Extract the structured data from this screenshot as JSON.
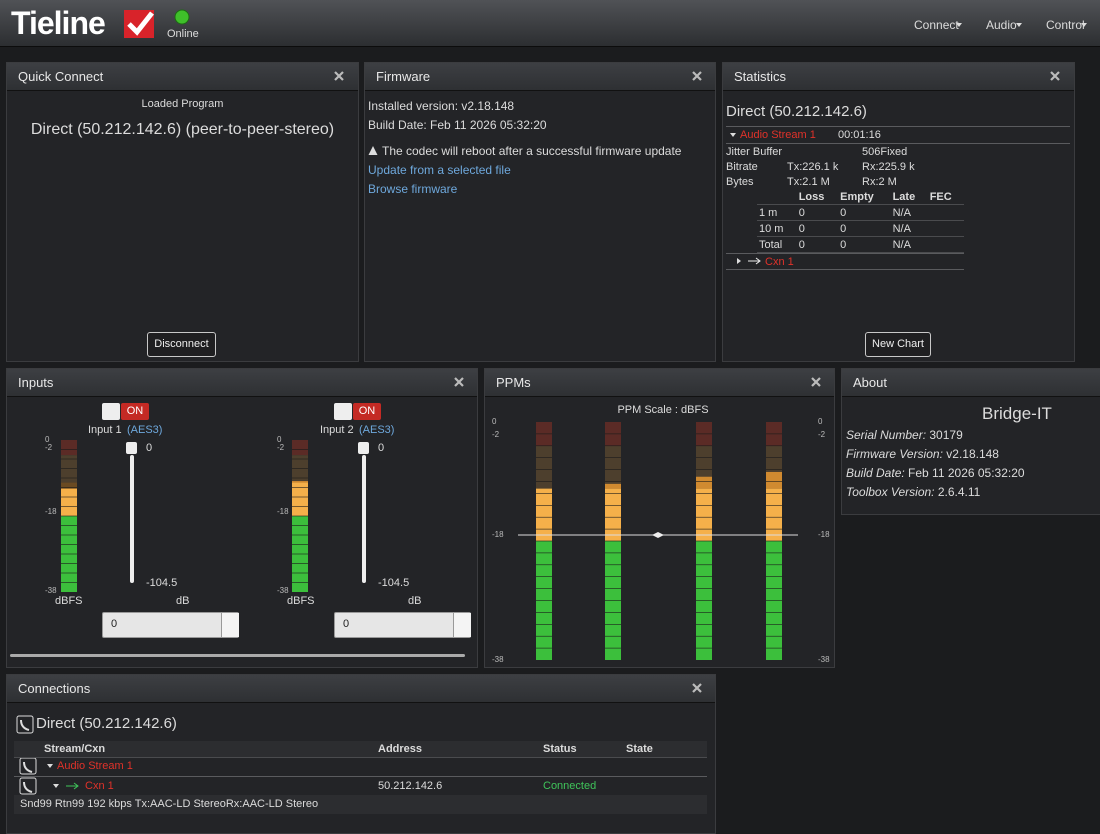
{
  "header": {
    "logo": "Tieline",
    "status": "Online",
    "menu": [
      "Connect",
      "Audio",
      "Control"
    ]
  },
  "quick_connect": {
    "title": "Quick Connect",
    "loaded_label": "Loaded Program",
    "program": "Direct (50.212.142.6) (peer-to-peer-stereo)",
    "button": "Disconnect"
  },
  "firmware": {
    "title": "Firmware",
    "installed": "Installed version: v2.18.148",
    "build": "Build Date: Feb 11 2026 05:32:20",
    "warning": "The codec will reboot after a successful firmware update",
    "links": [
      "Update from a selected file",
      "Browse firmware"
    ]
  },
  "statistics": {
    "title": "Statistics",
    "connection": "Direct (50.212.142.6)",
    "stream": "Audio Stream 1",
    "time": "00:01:16",
    "jitter": {
      "label": "Jitter Buffer",
      "value": "506Fixed"
    },
    "bitrate": {
      "label": "Bitrate",
      "tx": "Tx:226.1 k",
      "rx": "Rx:225.9 k"
    },
    "bytes": {
      "label": "Bytes",
      "tx": "Tx:2.1 M",
      "rx": "Rx:2 M"
    },
    "table": {
      "columns": [
        "Loss",
        "Empty",
        "Late",
        "FEC"
      ],
      "rows": [
        [
          "1 m",
          "0",
          "0",
          "N/A"
        ],
        [
          "10 m",
          "0",
          "0",
          "N/A"
        ],
        [
          "Total",
          "0",
          "0",
          "N/A"
        ]
      ]
    },
    "cxn": "Cxn 1",
    "button": "New Chart"
  },
  "inputs": {
    "title": "Inputs",
    "scale": [
      "0",
      "-2",
      "-18",
      "-38"
    ],
    "channels": [
      {
        "switch": "ON",
        "label": "Input 1",
        "source": "(AES3)",
        "fader": "0",
        "fader_min": "-104.5",
        "meter_unit": "dBFS",
        "fader_unit": "dB",
        "field": "0"
      },
      {
        "switch": "ON",
        "label": "Input 2",
        "source": "(AES3)",
        "fader": "0",
        "fader_min": "-104.5",
        "meter_unit": "dBFS",
        "fader_unit": "dB",
        "field": "0"
      }
    ]
  },
  "ppms": {
    "title": "PPMs",
    "scale_label": "PPM Scale : dBFS",
    "scale": [
      "0",
      "-2",
      "-18",
      "-38"
    ]
  },
  "about": {
    "title": "About",
    "product": "Bridge-IT",
    "fields": [
      {
        "label": "Serial Number:",
        "value": "30179"
      },
      {
        "label": "Firmware Version:",
        "value": "v2.18.148"
      },
      {
        "label": "Build Date:",
        "value": "Feb 11 2026 05:32:20"
      },
      {
        "label": "Toolbox Version:",
        "value": "2.6.4.11"
      }
    ]
  },
  "connections": {
    "title": "Connections",
    "connection": "Direct (50.212.142.6)",
    "columns": [
      "Stream/Cxn",
      "Address",
      "Status",
      "State"
    ],
    "stream": "Audio Stream 1",
    "cxn": {
      "name": "Cxn 1",
      "address": "50.212.142.6",
      "status": "Connected"
    },
    "info": "Snd99 Rtn99 192 kbps Tx:AAC-LD StereoRx:AAC-LD Stereo"
  }
}
